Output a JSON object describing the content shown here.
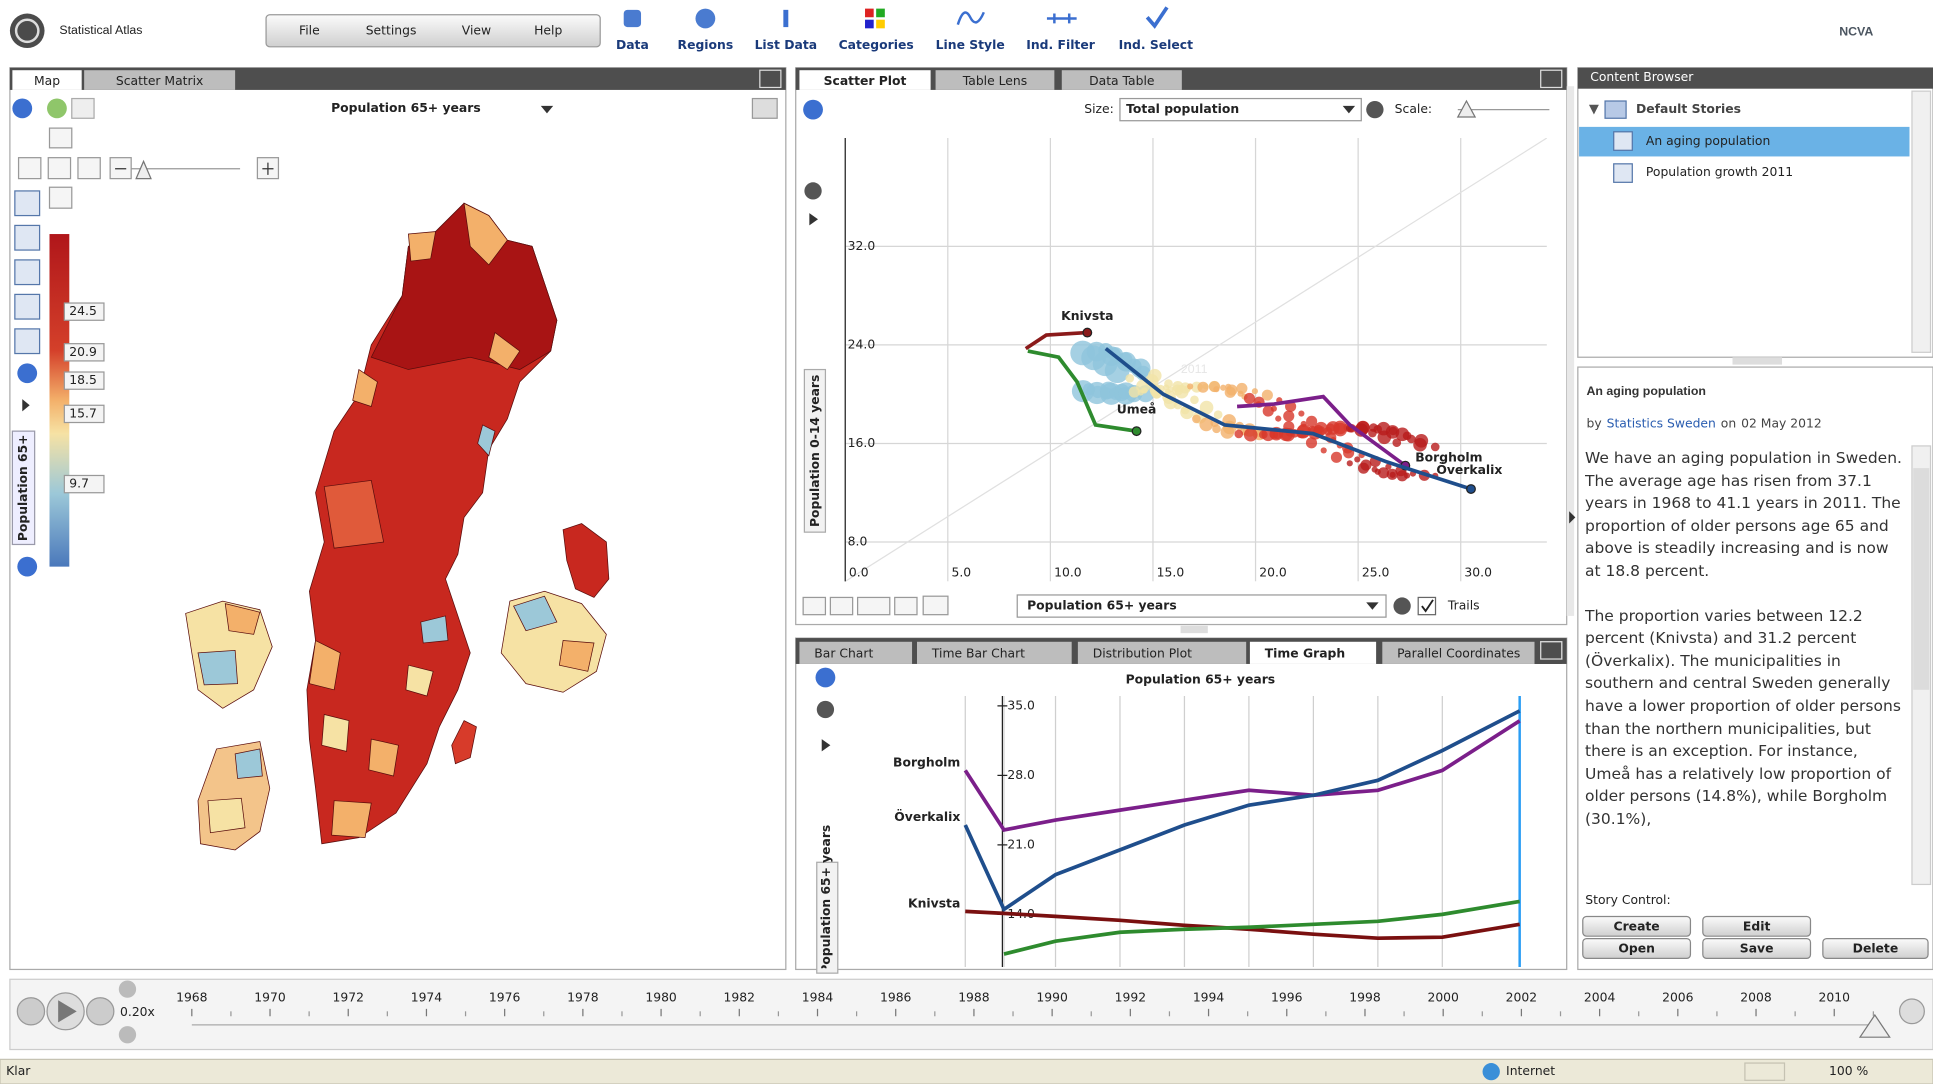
{
  "app_bar": {
    "title": "Statistical Atlas",
    "menu": [
      "File",
      "Settings",
      "View",
      "Help"
    ],
    "tools": [
      "Data",
      "Regions",
      "List Data",
      "Categories",
      "Line Style",
      "Ind. Filter",
      "Ind. Select"
    ],
    "logo": "NCVA"
  },
  "map_panel": {
    "tabs": [
      "Map",
      "Scatter Matrix"
    ],
    "indicator": "Population 65+ years",
    "legend_title": "Population 65+",
    "legend_labels": [
      "24.5",
      "20.9",
      "18.5",
      "15.7",
      "9.7"
    ]
  },
  "scatter_panel": {
    "type": "scatter",
    "tabs": [
      "Scatter Plot",
      "Table Lens",
      "Data Table"
    ],
    "size_label": "Size:",
    "size_indicator": "Total population",
    "scale_label": "Scale:",
    "year": "2011",
    "x_indicator": "Population 65+ years",
    "trails_label": "Trails",
    "y_label": "Population 0-14 years",
    "xlim": [
      0,
      34.2
    ],
    "ylim": [
      4.8,
      40.8
    ],
    "xticks": [
      {
        "value": 0,
        "label": "0.0"
      },
      {
        "value": 5,
        "label": "5.0"
      },
      {
        "value": 10,
        "label": "10.0"
      },
      {
        "value": 15,
        "label": "15.0"
      },
      {
        "value": 20,
        "label": "20.0"
      },
      {
        "value": 25,
        "label": "25.0"
      },
      {
        "value": 30,
        "label": "30.0"
      }
    ],
    "yticks": [
      {
        "value": 8,
        "label": "8.0"
      },
      {
        "value": 16,
        "label": "16.0"
      },
      {
        "value": 24,
        "label": "24.0"
      },
      {
        "value": 32,
        "label": "32.0"
      }
    ],
    "series": [
      {
        "name": "Knivsta",
        "color": "#8b1a1a",
        "x": [
          8.8,
          9.8,
          11.8
        ],
        "y": [
          23.7,
          24.8,
          25.0
        ]
      },
      {
        "name": "Umeå",
        "color": "#2e8b2e",
        "x": [
          8.9,
          10.4,
          11.3,
          12.2,
          14.2
        ],
        "y": [
          23.5,
          23.0,
          21.0,
          17.5,
          17.0
        ]
      },
      {
        "name": "Borgholm",
        "color": "#7b1f8a",
        "x": [
          19.1,
          20.9,
          23.3,
          24.6,
          27.3
        ],
        "y": [
          19.0,
          19.2,
          19.8,
          17.5,
          14.2
        ]
      },
      {
        "name": "Överkalix",
        "color": "#1f4e8c",
        "x": [
          12.7,
          15.5,
          18.5,
          22.8,
          26.4,
          30.5
        ],
        "y": [
          23.7,
          20.0,
          17.5,
          16.8,
          14.5,
          12.3
        ]
      }
    ]
  },
  "time_panel": {
    "type": "line",
    "tabs": [
      "Bar Chart",
      "Time Bar Chart",
      "Distribution Plot",
      "Time Graph",
      "Parallel Coordinates"
    ],
    "title": "Population 65+ years",
    "y_label": "Population 65+ years",
    "xlim": [
      1968,
      2011
    ],
    "ylim": [
      8.7,
      36
    ],
    "yticks": [
      {
        "value": 14,
        "label": "14.0"
      },
      {
        "value": 21,
        "label": "21.0"
      },
      {
        "value": 28,
        "label": "28.0"
      },
      {
        "value": 35,
        "label": "35.0"
      }
    ],
    "x": [
      1968,
      1971,
      1975,
      1980,
      1985,
      1990,
      1995,
      2000,
      2005,
      2011
    ],
    "series": [
      {
        "name": "Borgholm",
        "color": "#7b1f8a",
        "values": [
          28.5,
          22.5,
          23.5,
          24.5,
          25.5,
          26.5,
          26.0,
          26.5,
          28.5,
          33.5
        ]
      },
      {
        "name": "Överkalix",
        "color": "#1f4e8c",
        "values": [
          23.0,
          14.5,
          18.0,
          20.5,
          23.0,
          25.0,
          26.0,
          27.5,
          30.5,
          34.5
        ]
      },
      {
        "name": "Knivsta",
        "color": "#7a1010",
        "values": [
          14.3,
          14.1,
          13.8,
          13.4,
          12.9,
          12.5,
          12.0,
          11.6,
          11.7,
          13.0
        ]
      },
      {
        "color": "#2e8b2e",
        "values": [
          null,
          10.0,
          11.3,
          12.2,
          12.5,
          12.7,
          13.0,
          13.3,
          14.0,
          15.3
        ]
      }
    ]
  },
  "content_browser": {
    "title": "Content Browser",
    "folder": "Default Stories",
    "stories": [
      "An aging population",
      "Population growth 2011"
    ]
  },
  "story": {
    "title": "An aging population",
    "by": "by",
    "author": "Statistics Sweden",
    "on": "on",
    "date": "02 May 2012",
    "paragraphs": [
      "We have an aging population in Sweden. The average age has risen from 37.1 years in 1968 to 41.1 years in 2011. The proportion of older persons age 65 and above is steadily increasing and is now at 18.8 percent.",
      "The proportion varies between 12.2 percent (Knivsta) and 31.2 percent (Överkalix). The municipalities in southern and central Sweden generally have a lower proportion of older persons than the northern municipalities, but there is an exception. For instance, Umeå has a relatively low proportion of older persons (14.8%), while Borgholm (30.1%),"
    ],
    "control_label": "Story Control:",
    "buttons": [
      "Create",
      "Edit",
      "Open",
      "Save",
      "Delete"
    ]
  },
  "timeline": {
    "speed": "0.20x",
    "years": [
      "1968",
      "1970",
      "1972",
      "1974",
      "1976",
      "1978",
      "1980",
      "1982",
      "1984",
      "1986",
      "1988",
      "1990",
      "1992",
      "1994",
      "1996",
      "1998",
      "2000",
      "2002",
      "2004",
      "2006",
      "2008",
      "2010"
    ]
  },
  "status_bar": {
    "status": "Klar",
    "zone": "Internet",
    "zoom": "100 %"
  }
}
